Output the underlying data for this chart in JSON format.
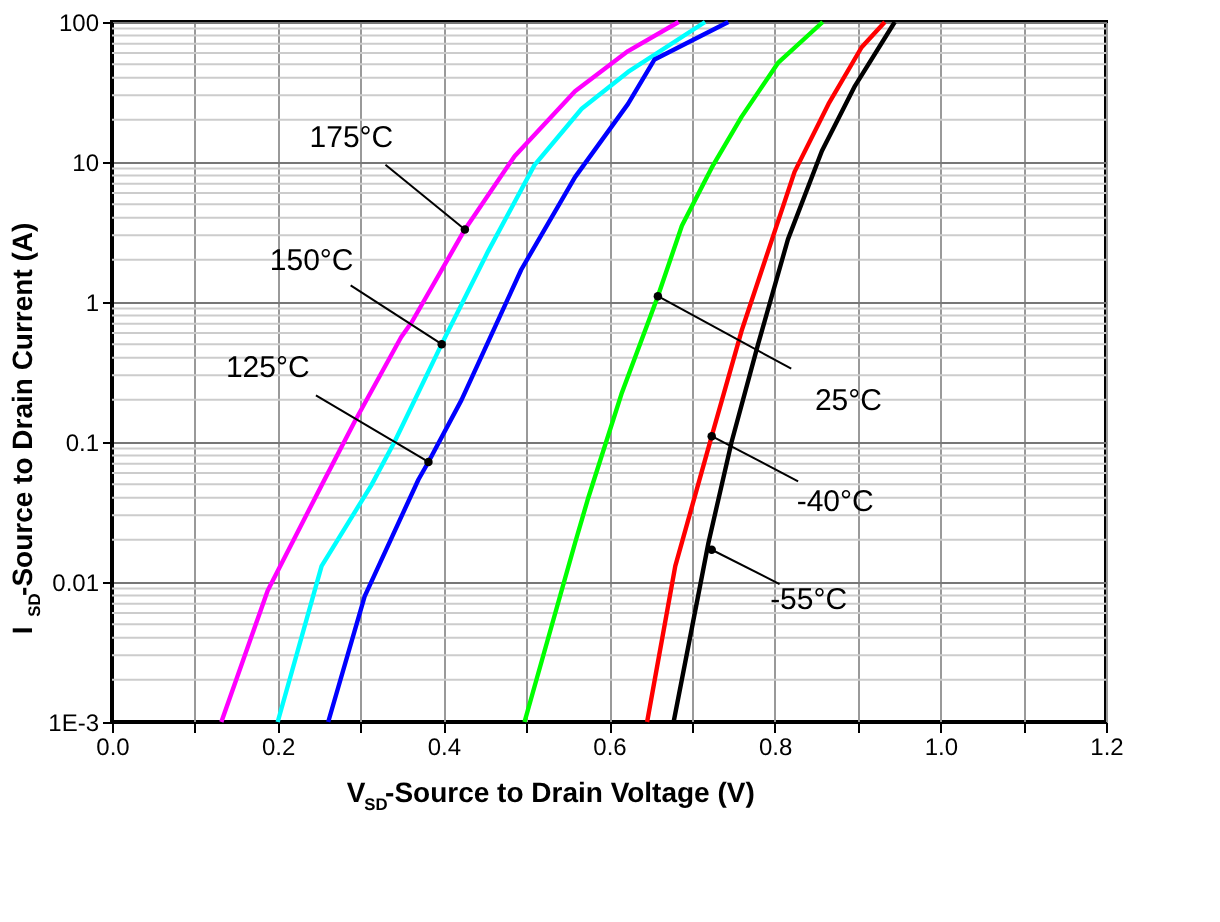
{
  "chart_data": {
    "type": "line",
    "xlabel": "V$_{SD}$-Source to Drain Voltage (V)",
    "ylabel": "I$_{SD}$-Source to Drain Current (A)",
    "xlim": [
      0,
      1.2
    ],
    "xticks": [
      {
        "value": 0,
        "label": "0.0"
      },
      {
        "value": 0.1,
        "label": null
      },
      0.2,
      {
        "value": 0.3,
        "label": null
      },
      0.4,
      {
        "value": 0.5,
        "label": null
      },
      0.6,
      {
        "value": 0.7,
        "label": null
      },
      0.8,
      {
        "value": 0.9,
        "label": null
      },
      {
        "value": 1,
        "label": "1.0"
      },
      {
        "value": 1.1,
        "label": null
      },
      1.2
    ],
    "ylim": [
      0.001,
      100
    ],
    "yticks": [
      {
        "value": 0.001,
        "label": "1E-3"
      },
      0.01,
      0.1,
      1,
      10,
      100
    ],
    "log": "y",
    "grid": true,
    "legend": false,
    "line_style": "solid",
    "marker": "none",
    "series": [
      {
        "color": "#ff00ff",
        "x": [
          0.132,
          0.188,
          0.253,
          0.293,
          0.349,
          0.362,
          0.426,
          0.486,
          0.559,
          0.623,
          0.684
        ],
        "values": [
          0.001,
          0.0087,
          0.049,
          0.14,
          0.56,
          0.72,
          3.3,
          11,
          32,
          62,
          100
        ]
      },
      {
        "color": "#00ffff",
        "x": [
          0.2,
          0.253,
          0.313,
          0.341,
          0.398,
          0.454,
          0.51,
          0.567,
          0.623,
          0.716
        ],
        "values": [
          0.001,
          0.013,
          0.049,
          0.1,
          0.5,
          2.3,
          9.5,
          24,
          44,
          100
        ]
      },
      {
        "color": "#0000ff",
        "x": [
          0.261,
          0.305,
          0.37,
          0.382,
          0.422,
          0.494,
          0.559,
          0.623,
          0.655,
          0.744
        ],
        "values": [
          0.001,
          0.0079,
          0.054,
          0.072,
          0.2,
          1.7,
          7.8,
          26,
          54,
          100
        ]
      },
      {
        "color": "#00ff00",
        "x": [
          0.498,
          0.559,
          0.575,
          0.615,
          0.659,
          0.688,
          0.724,
          0.76,
          0.804,
          0.858
        ],
        "values": [
          0.001,
          0.019,
          0.04,
          0.22,
          1.1,
          3.5,
          9.1,
          21,
          51,
          100
        ]
      },
      {
        "color": "#ff0000",
        "x": [
          0.646,
          0.68,
          0.724,
          0.76,
          0.792,
          0.824,
          0.865,
          0.905,
          0.933
        ],
        "values": [
          0.001,
          0.013,
          0.11,
          0.62,
          2.3,
          8.5,
          26,
          66,
          100
        ]
      },
      {
        "color": "#000000",
        "x": [
          0.678,
          0.72,
          0.748,
          0.78,
          0.816,
          0.857,
          0.897,
          0.945
        ],
        "values": [
          0.001,
          0.019,
          0.1,
          0.5,
          2.8,
          12,
          35,
          100
        ]
      }
    ],
    "annotations": [
      {
        "text": "175°C",
        "x": 0.426,
        "y": 3.3
      },
      {
        "text": "150°C",
        "x": 0.398,
        "y": 0.5
      },
      {
        "text": "125°C",
        "x": 0.382,
        "y": 0.072
      },
      {
        "text": "25°C",
        "x": 0.659,
        "y": 1.1
      },
      {
        "text": "-40°C",
        "x": 0.724,
        "y": 0.11
      },
      {
        "text": "-55°C",
        "x": 0.724,
        "y": 0.017
      }
    ]
  }
}
